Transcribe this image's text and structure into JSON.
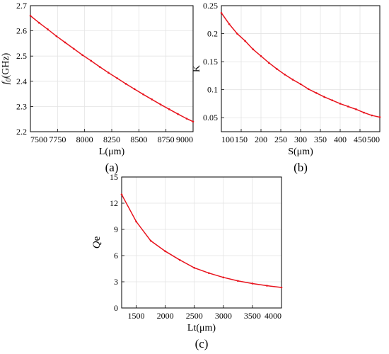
{
  "panels": [
    {
      "panel_label": "(a)",
      "ylabel_main": "f",
      "ylabel_sub": "0",
      "ylabel_rest": "(GHz)",
      "xlabel": "L(μm)",
      "xticks": [
        "7500",
        "7750",
        "8000",
        "8250",
        "8500",
        "8750",
        "9000"
      ],
      "yticks": [
        "2.2",
        "2.3",
        "2.4",
        "2.5",
        "2.6",
        "2.7"
      ]
    },
    {
      "panel_label": "(b)",
      "ylabel_main": "K",
      "ylabel_sub": "",
      "ylabel_rest": "",
      "xlabel": "S(μm)",
      "xticks": [
        "100",
        "150",
        "200",
        "250",
        "300",
        "350",
        "400",
        "450",
        "500"
      ],
      "yticks": [
        "0.05",
        "0.1",
        "0.15",
        "0.2",
        "0.25"
      ]
    },
    {
      "panel_label": "(c)",
      "ylabel_main": "Q",
      "ylabel_sub": "",
      "ylabel_rest": "e",
      "xlabel": "Lt(μm)",
      "xticks": [
        "1500",
        "2000",
        "2500",
        "3000",
        "3500",
        "4000"
      ],
      "yticks": [
        "0",
        "3",
        "6",
        "9",
        "12",
        "15"
      ]
    }
  ],
  "chart_data": [
    {
      "type": "line",
      "xlabel": "L(μm)",
      "ylabel": "f0(GHz)",
      "xlim": [
        7500,
        9000
      ],
      "ylim": [
        2.2,
        2.7
      ],
      "grid": true,
      "line_color": "#e8141e",
      "x": [
        7500,
        7580,
        7660,
        7740,
        7820,
        7900,
        7980,
        8060,
        8140,
        8220,
        8300,
        8380,
        8460,
        8540,
        8620,
        8700,
        8780,
        8860,
        8940,
        9000
      ],
      "y": [
        2.66,
        2.632,
        2.606,
        2.579,
        2.554,
        2.529,
        2.504,
        2.481,
        2.457,
        2.434,
        2.412,
        2.39,
        2.369,
        2.348,
        2.328,
        2.308,
        2.289,
        2.27,
        2.252,
        2.24
      ]
    },
    {
      "type": "line",
      "xlabel": "S(μm)",
      "ylabel": "K",
      "xlim": [
        100,
        500
      ],
      "ylim": [
        0.025,
        0.25
      ],
      "grid": true,
      "line_color": "#e8141e",
      "x": [
        100,
        120,
        140,
        160,
        180,
        200,
        220,
        240,
        260,
        280,
        300,
        320,
        340,
        360,
        380,
        400,
        420,
        440,
        460,
        480,
        500
      ],
      "y": [
        0.237,
        0.217,
        0.2,
        0.187,
        0.172,
        0.16,
        0.148,
        0.137,
        0.127,
        0.118,
        0.11,
        0.101,
        0.094,
        0.087,
        0.081,
        0.075,
        0.07,
        0.065,
        0.059,
        0.054,
        0.051
      ]
    },
    {
      "type": "line",
      "xlabel": "Lt(μm)",
      "ylabel": "Qe",
      "xlim": [
        1250,
        4000
      ],
      "ylim": [
        0,
        15
      ],
      "grid": true,
      "line_color": "#e8141e",
      "x": [
        1250,
        1500,
        1750,
        2000,
        2250,
        2500,
        2750,
        3000,
        3250,
        3500,
        3750,
        4000
      ],
      "y": [
        13.0,
        9.9,
        7.7,
        6.5,
        5.5,
        4.6,
        4.0,
        3.5,
        3.1,
        2.8,
        2.55,
        2.35
      ]
    }
  ]
}
